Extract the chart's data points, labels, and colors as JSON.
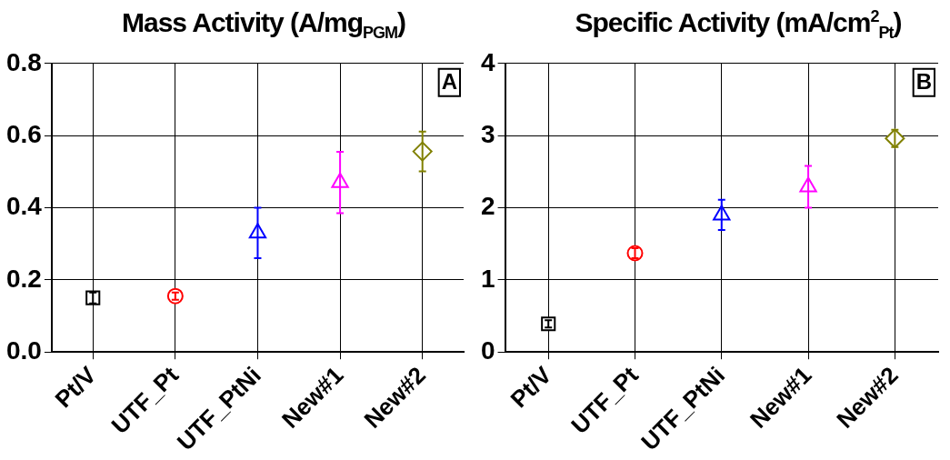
{
  "chart_data": [
    {
      "type": "scatter",
      "title": "Mass Activity (A/mg$_{PGM}$)",
      "categories": [
        "Pt/V",
        "UTF_Pt",
        "UTF_PtNi",
        "New#1",
        "New#2"
      ],
      "ylim": [
        0,
        0.8
      ],
      "yticks": [
        {
          "value": 0,
          "label": "0.0"
        },
        {
          "value": 0.2,
          "label": "0.2"
        },
        {
          "value": 0.4,
          "label": "0.4"
        },
        {
          "value": 0.6,
          "label": "0.6"
        },
        {
          "value": 0.8,
          "label": "0.8"
        }
      ],
      "grid": true,
      "annotations": [
        "A"
      ],
      "series": [
        {
          "color": "#000000",
          "marker": "square",
          "values": [
            0.15,
            null,
            null,
            null,
            null
          ],
          "errors": [
            0.015,
            null,
            null,
            null,
            null
          ]
        },
        {
          "color": "#ff0000",
          "marker": "circle",
          "values": [
            null,
            0.155,
            null,
            null,
            null
          ],
          "errors": [
            null,
            0.01,
            null,
            null,
            null
          ]
        },
        {
          "color": "#0000ff",
          "marker": "triangle",
          "values": [
            null,
            null,
            0.33,
            null,
            null
          ],
          "errors": [
            null,
            null,
            0.07,
            null,
            null
          ]
        },
        {
          "color": "#ff00ff",
          "marker": "triangle",
          "values": [
            null,
            null,
            null,
            0.47,
            null
          ],
          "errors": [
            null,
            null,
            null,
            0.085,
            null
          ]
        },
        {
          "color": "#808000",
          "marker": "diamond",
          "values": [
            null,
            null,
            null,
            null,
            0.556
          ],
          "errors": [
            null,
            null,
            null,
            null,
            0.055
          ]
        }
      ]
    },
    {
      "type": "scatter",
      "title": "Specific Activity (mA/cm$^{2}$$_{Pt}$)",
      "categories": [
        "Pt/V",
        "UTF_Pt",
        "UTF_PtNi",
        "New#1",
        "New#2"
      ],
      "ylim": [
        0,
        4
      ],
      "yticks": [
        0,
        1,
        2,
        3,
        4
      ],
      "grid": true,
      "annotations": [
        "B"
      ],
      "series": [
        {
          "color": "#000000",
          "marker": "square",
          "values": [
            0.39,
            null,
            null,
            null,
            null
          ],
          "errors": [
            0.05,
            null,
            null,
            null,
            null
          ]
        },
        {
          "color": "#ff0000",
          "marker": "circle",
          "values": [
            null,
            1.37,
            null,
            null,
            null
          ],
          "errors": [
            null,
            0.07,
            null,
            null,
            null
          ]
        },
        {
          "color": "#0000ff",
          "marker": "triangle",
          "values": [
            null,
            null,
            1.9,
            null,
            null
          ],
          "errors": [
            null,
            null,
            0.21,
            null,
            null
          ]
        },
        {
          "color": "#ff00ff",
          "marker": "triangle",
          "values": [
            null,
            null,
            null,
            2.29,
            null
          ],
          "errors": [
            null,
            null,
            null,
            0.29,
            null
          ]
        },
        {
          "color": "#808000",
          "marker": "diamond",
          "values": [
            null,
            null,
            null,
            null,
            2.96
          ],
          "errors": [
            null,
            null,
            null,
            null,
            0.12
          ]
        }
      ]
    }
  ]
}
